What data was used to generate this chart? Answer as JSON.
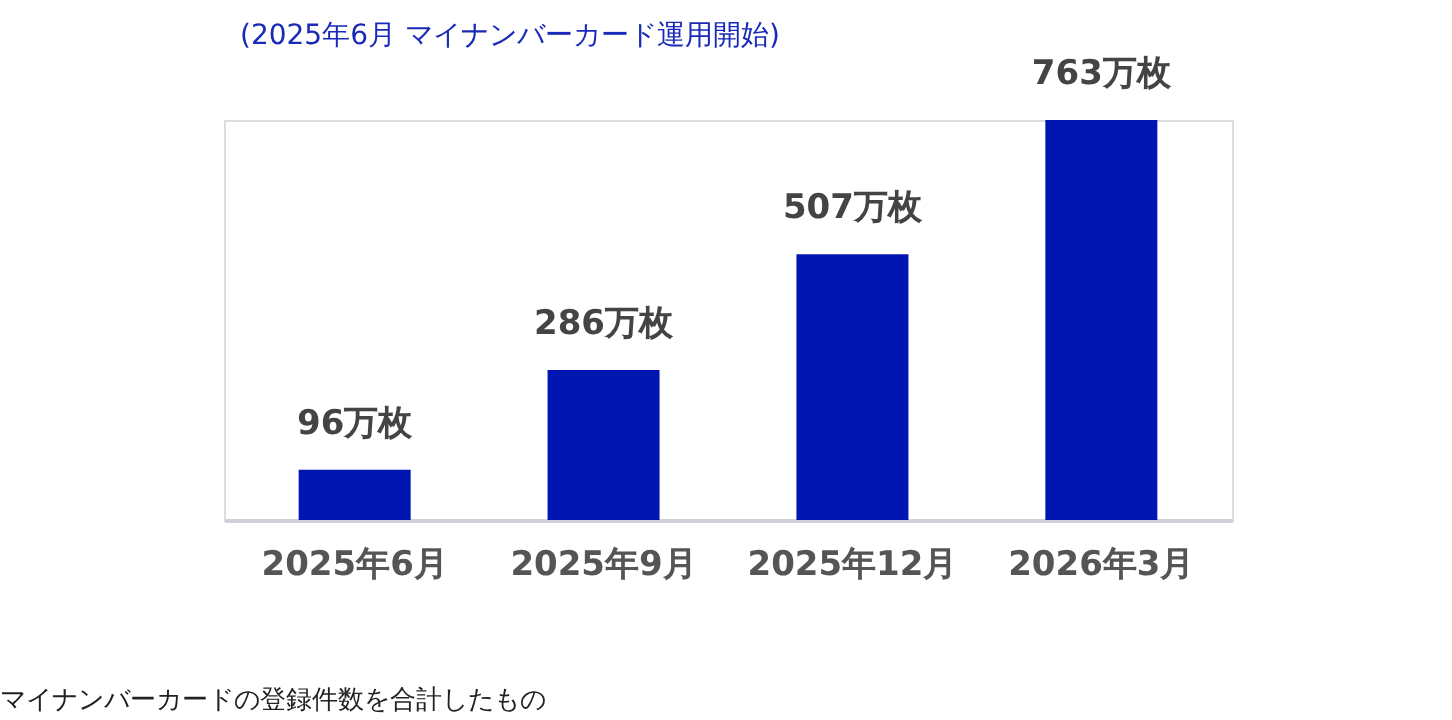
{
  "chart_data": {
    "type": "bar",
    "subtitle": "(2025年6月 マイナンバーカード運用開始)",
    "categories": [
      "2025年6月",
      "2025年9月",
      "2025年12月",
      "2026年3月"
    ],
    "values": [
      96,
      286,
      507,
      763
    ],
    "value_labels": [
      "96万枚",
      "286万枚",
      "507万枚",
      "763万枚"
    ],
    "color": "#0016b0",
    "annotations": [
      "マイナンバーカードの登録件数を合計したもの"
    ]
  }
}
